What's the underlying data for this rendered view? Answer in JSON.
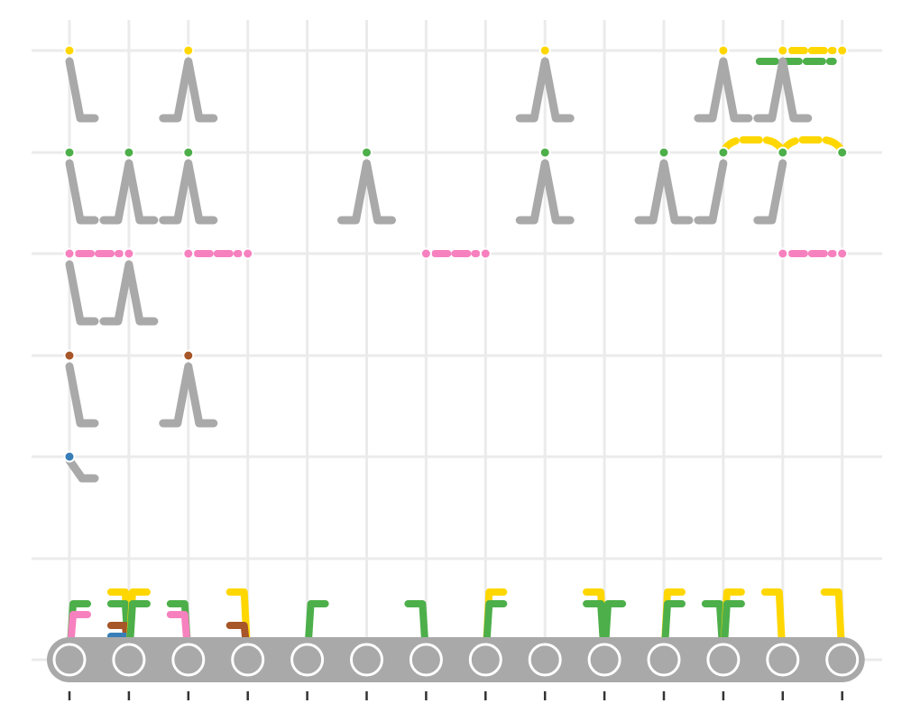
{
  "colors": {
    "grid": "#ebebeb",
    "gray": "#a9a9a9",
    "tick": "#333333",
    "yellow": "#ffd700",
    "green": "#4daf4a",
    "pink": "#f781bf",
    "brown": "#a65628",
    "blue": "#377eb8"
  },
  "diagram": {
    "columns": 14,
    "tracks": [
      {
        "color": "yellow",
        "dots": [
          0,
          2,
          8,
          11,
          12,
          13
        ],
        "dashed": [
          [
            12,
            13
          ]
        ]
      },
      {
        "color": "green",
        "dots": [
          0,
          1,
          2,
          5,
          8,
          10,
          11,
          12,
          13
        ],
        "curves": [
          [
            11,
            12
          ],
          [
            12,
            13
          ]
        ]
      },
      {
        "color": "pink",
        "dots": [
          0,
          1,
          2,
          3,
          6,
          7,
          12,
          13
        ],
        "dashed": [
          [
            0,
            1
          ],
          [
            2,
            3
          ],
          [
            6,
            7
          ],
          [
            12,
            13
          ]
        ]
      },
      {
        "color": "brown",
        "dots": [
          0,
          2
        ]
      },
      {
        "color": "blue",
        "dots": [
          0
        ]
      }
    ],
    "cabins": [
      {
        "col": 0,
        "shape": "right"
      },
      {
        "col": 2,
        "shape": "both"
      },
      {
        "col": 8,
        "shape": "both"
      },
      {
        "col": 11,
        "shape": "both"
      },
      {
        "col": 12,
        "shape": "both"
      },
      {
        "col": 0,
        "shape": "right",
        "row": 1
      },
      {
        "col": 1,
        "shape": "both",
        "row": 1
      },
      {
        "col": 2,
        "shape": "both",
        "row": 1
      },
      {
        "col": 5,
        "shape": "both",
        "row": 1
      },
      {
        "col": 8,
        "shape": "both",
        "row": 1
      },
      {
        "col": 10,
        "shape": "both",
        "row": 1
      },
      {
        "col": 11,
        "shape": "left",
        "row": 1
      },
      {
        "col": 12,
        "shape": "left",
        "row": 1
      },
      {
        "col": 0,
        "shape": "right",
        "row": 2
      },
      {
        "col": 1,
        "shape": "both",
        "row": 2
      },
      {
        "col": 0,
        "shape": "right",
        "row": 3
      },
      {
        "col": 2,
        "shape": "both",
        "row": 3
      },
      {
        "col": 0,
        "shape": "right-short",
        "row": 4
      }
    ],
    "bottom": {
      "nodes": 14
    }
  }
}
